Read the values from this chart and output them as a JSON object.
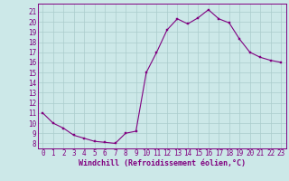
{
  "hours": [
    0,
    1,
    2,
    3,
    4,
    5,
    6,
    7,
    8,
    9,
    10,
    11,
    12,
    13,
    14,
    15,
    16,
    17,
    18,
    19,
    20,
    21,
    22,
    23
  ],
  "values": [
    11,
    10,
    9.5,
    8.8,
    8.5,
    8.2,
    8.1,
    8.0,
    9.0,
    9.2,
    15.0,
    17.0,
    19.2,
    20.3,
    19.8,
    20.4,
    21.2,
    20.3,
    19.9,
    18.3,
    17.0,
    16.5,
    16.2,
    16.0
  ],
  "line_color": "#800080",
  "marker_color": "#800080",
  "bg_color": "#cce8e8",
  "grid_color": "#aacccc",
  "xlabel": "Windchill (Refroidissement éolien,°C)",
  "ylabel_ticks": [
    8,
    9,
    10,
    11,
    12,
    13,
    14,
    15,
    16,
    17,
    18,
    19,
    20,
    21
  ],
  "ylim": [
    7.5,
    21.8
  ],
  "xlim": [
    -0.5,
    23.5
  ],
  "tick_fontsize": 5.5,
  "label_fontsize": 6.0
}
